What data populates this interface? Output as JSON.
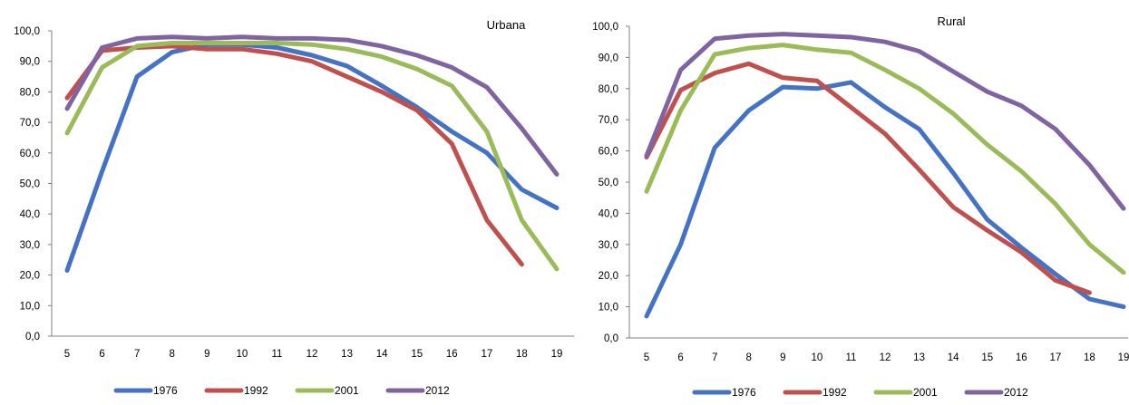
{
  "chart_data": [
    {
      "type": "line",
      "title": "Urbana",
      "x": [
        5,
        6,
        7,
        8,
        9,
        10,
        11,
        12,
        13,
        14,
        15,
        16,
        17,
        18,
        19
      ],
      "ylim": [
        0,
        100
      ],
      "yticks": [
        "0,0",
        "10,0",
        "20,0",
        "30,0",
        "40,0",
        "50,0",
        "60,0",
        "70,0",
        "80,0",
        "90,0",
        "100,0"
      ],
      "grid": false,
      "legend": "bottom",
      "series": [
        {
          "name": "1976",
          "color": "#4472C4",
          "values": [
            21.5,
            54,
            85,
            93,
            95.5,
            95.5,
            94.5,
            92,
            88.5,
            82,
            75,
            67,
            60,
            48,
            42
          ]
        },
        {
          "name": "1992",
          "color": "#C0504D",
          "values": [
            78,
            93.5,
            94.5,
            95,
            94,
            94,
            92.5,
            90,
            85,
            80,
            74,
            63,
            38,
            23.5,
            null
          ]
        },
        {
          "name": "2001",
          "color": "#9BBB59",
          "values": [
            66.5,
            88,
            95,
            96,
            96,
            96,
            96,
            95.5,
            94,
            91.5,
            87.5,
            82,
            67,
            38,
            22
          ]
        },
        {
          "name": "2012",
          "color": "#8064A2",
          "values": [
            74.5,
            94.5,
            97.5,
            98,
            97.5,
            98,
            97.5,
            97.5,
            97,
            95,
            92,
            88,
            81.5,
            68,
            53
          ]
        }
      ]
    },
    {
      "type": "line",
      "title": "Rural",
      "x": [
        5,
        6,
        7,
        8,
        9,
        10,
        11,
        12,
        13,
        14,
        15,
        16,
        17,
        18,
        19
      ],
      "ylim": [
        0,
        100
      ],
      "yticks": [
        "0,0",
        "10,0",
        "20,0",
        "30,0",
        "40,0",
        "50,0",
        "60,0",
        "70,0",
        "80,0",
        "90,0",
        "100,0"
      ],
      "grid": false,
      "legend": "bottom",
      "series": [
        {
          "name": "1976",
          "color": "#4472C4",
          "values": [
            7,
            30,
            61,
            73,
            80.5,
            80,
            82,
            74,
            67,
            53,
            38,
            29,
            20.5,
            12.5,
            10
          ]
        },
        {
          "name": "1992",
          "color": "#C0504D",
          "values": [
            58,
            79.5,
            85,
            88,
            83.5,
            82.5,
            74,
            65.5,
            54,
            42,
            34.5,
            27.5,
            18.5,
            14.5,
            null
          ]
        },
        {
          "name": "2001",
          "color": "#9BBB59",
          "values": [
            47,
            73,
            91,
            93,
            94,
            92.5,
            91.5,
            86,
            80,
            72,
            62,
            53.5,
            43,
            30,
            21
          ]
        },
        {
          "name": "2012",
          "color": "#8064A2",
          "values": [
            58.5,
            86,
            96,
            97,
            97.5,
            97,
            96.5,
            95,
            92,
            85.5,
            79,
            74.5,
            67,
            55.5,
            41.5
          ]
        }
      ]
    }
  ]
}
